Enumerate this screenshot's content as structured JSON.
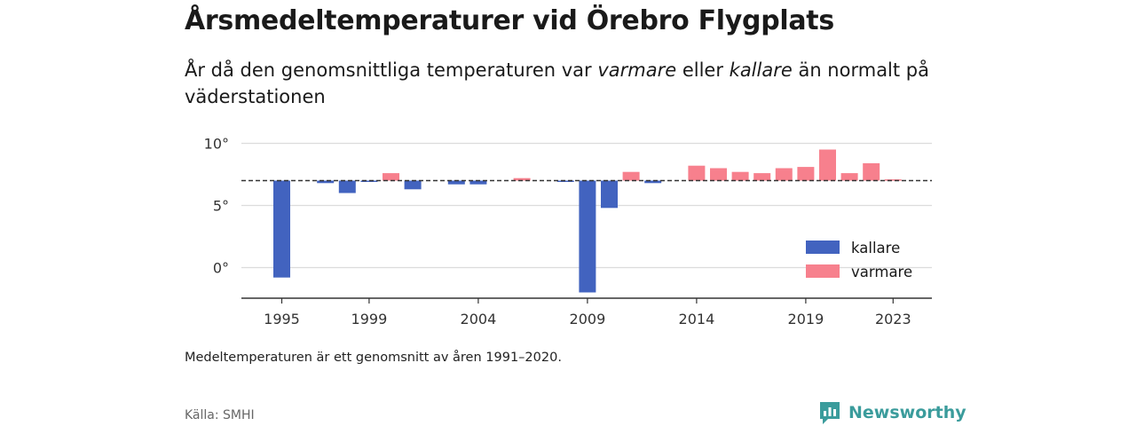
{
  "title": "Årsmedeltemperaturer vid Örebro Flygplats",
  "subtitle": {
    "p1": "År då den genomsnittliga temperaturen var ",
    "em1": "varmare",
    "p2": " eller ",
    "em2": "kallare",
    "p3": " än normalt på väderstationen"
  },
  "note": "Medeltemperaturen är ett genomsnitt av åren 1991–2020.",
  "source": "Källa: SMHI",
  "brand": "Newsworthy",
  "colors": {
    "kallare": "#4263bf",
    "varmare": "#f7808d",
    "grid": "#dcdcdc",
    "axis": "#333333",
    "brand": "#3b9c9c"
  },
  "chart_data": {
    "type": "bar",
    "baseline": 7.0,
    "ylim": [
      -2.5,
      10.5
    ],
    "yticks": [
      0,
      5,
      10
    ],
    "ytick_labels": [
      "0°",
      "5°",
      "10°"
    ],
    "xticks": [
      1995,
      1999,
      2004,
      2009,
      2014,
      2019,
      2023
    ],
    "legend": {
      "position": "right",
      "items": [
        {
          "key": "kallare",
          "label": "kallare"
        },
        {
          "key": "varmare",
          "label": "varmare"
        }
      ]
    },
    "x": [
      1995,
      1996,
      1997,
      1998,
      1999,
      2000,
      2001,
      2002,
      2003,
      2004,
      2005,
      2006,
      2007,
      2008,
      2009,
      2010,
      2011,
      2012,
      2013,
      2014,
      2015,
      2016,
      2017,
      2018,
      2019,
      2020,
      2021,
      2022,
      2023
    ],
    "values": [
      -0.8,
      7.0,
      6.8,
      6.0,
      6.9,
      7.6,
      6.3,
      7.0,
      6.7,
      6.7,
      7.0,
      7.2,
      7.0,
      6.9,
      -2.0,
      4.8,
      7.7,
      6.8,
      7.0,
      8.2,
      8.0,
      7.7,
      7.6,
      8.0,
      8.1,
      9.5,
      7.6,
      8.4,
      7.1
    ]
  }
}
